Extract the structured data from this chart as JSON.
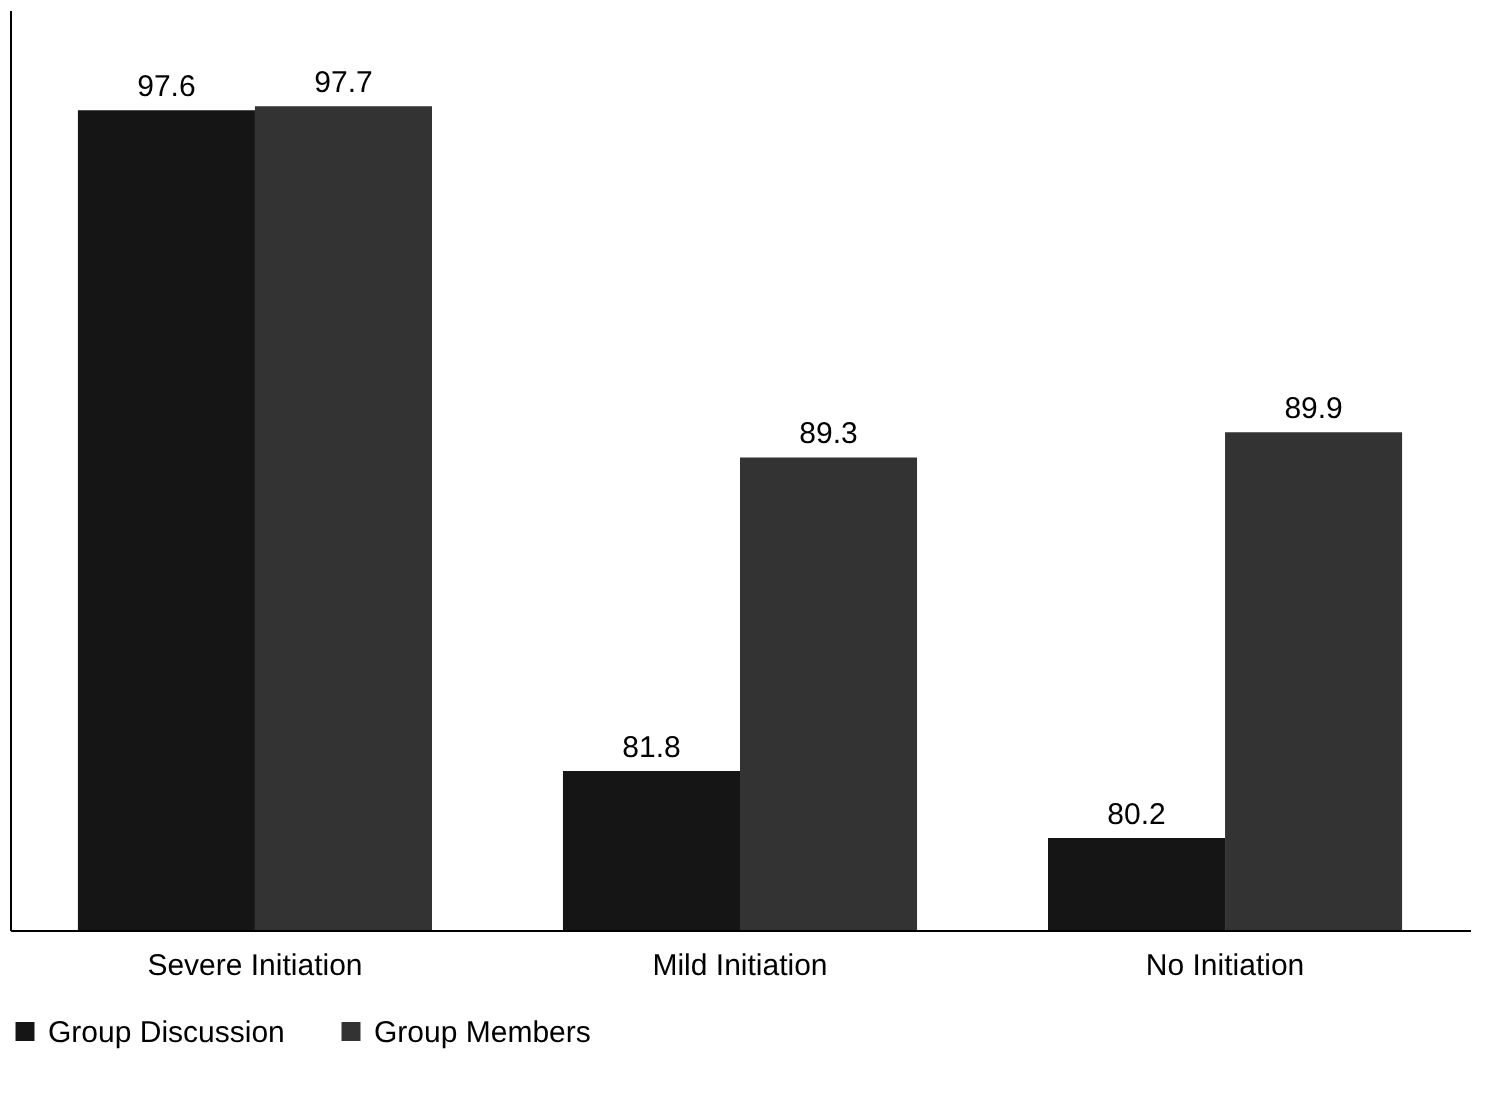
{
  "chart_data": {
    "type": "bar",
    "categories": [
      "Severe Initiation",
      "Mild Initiation",
      "No Initiation"
    ],
    "series": [
      {
        "name": "Group Discussion",
        "color": "#151515",
        "values": [
          97.6,
          81.8,
          80.2
        ]
      },
      {
        "name": "Group Members",
        "color": "#333333",
        "values": [
          97.7,
          89.3,
          89.9
        ]
      }
    ],
    "ylim": [
      78,
      100
    ],
    "data_labels": true,
    "legend": "bottom",
    "tick_labels": "x",
    "grid": false
  }
}
